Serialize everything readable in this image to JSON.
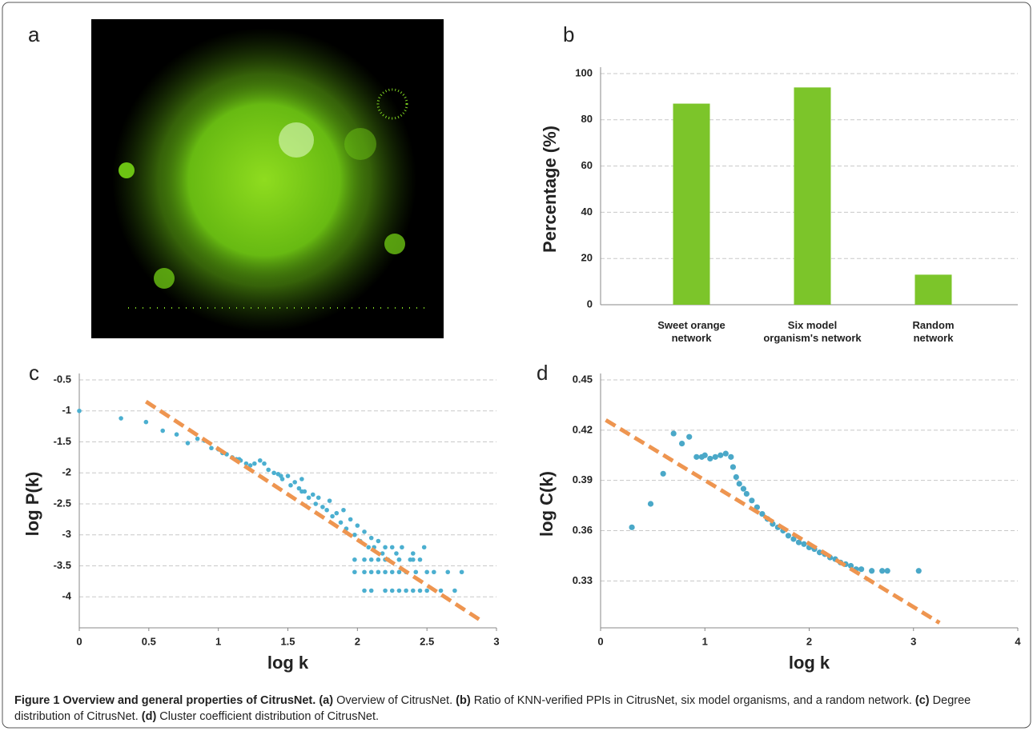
{
  "panels": [
    "a",
    "b",
    "c",
    "d"
  ],
  "chart_data": [
    {
      "type": "bar",
      "y_label": "Percentage (%)",
      "categories": [
        [
          "Sweet orange",
          "network"
        ],
        [
          "Six model",
          "organism's network"
        ],
        [
          "Random",
          "network"
        ]
      ],
      "values": [
        87,
        94,
        13
      ],
      "color": "#7cc52a",
      "ylim": [
        0,
        100
      ],
      "yticks": [
        0,
        20,
        40,
        60,
        80,
        100
      ],
      "grid": true
    },
    {
      "type": "scatter",
      "x_label": "log k",
      "y_label": "log P(k)",
      "xlim": [
        0,
        3
      ],
      "xticks": [
        0,
        0.5,
        1,
        1.5,
        2,
        2.5,
        3
      ],
      "ylim": [
        -4.5,
        -0.5
      ],
      "yticks": [
        -0.5,
        -1,
        -1.5,
        -2,
        -2.5,
        -3,
        -3.5,
        -4
      ],
      "grid": true,
      "points": {
        "color": "#4bafd0",
        "x": [
          0,
          0.3,
          0.48,
          0.6,
          0.7,
          0.78,
          0.85,
          0.9,
          0.95,
          1.0,
          1.03,
          1.06,
          1.1,
          1.13,
          1.15,
          1.16,
          1.2,
          1.23,
          1.26,
          1.3,
          1.33,
          1.36,
          1.4,
          1.43,
          1.45,
          1.46,
          1.5,
          1.52,
          1.55,
          1.58,
          1.6,
          1.6,
          1.62,
          1.65,
          1.68,
          1.7,
          1.72,
          1.75,
          1.78,
          1.8,
          1.82,
          1.85,
          1.88,
          1.9,
          1.92,
          1.95,
          1.98,
          2.0,
          2.02,
          2.05,
          2.08,
          2.1,
          2.12,
          2.15,
          2.18,
          2.2,
          2.22,
          2.25,
          2.28,
          2.3,
          2.32,
          2.35,
          2.38,
          2.4,
          2.42,
          2.45,
          2.48,
          2.5,
          2.55,
          2.6,
          2.65,
          2.7,
          2.75,
          2.05,
          2.1,
          2.2,
          2.25,
          2.3,
          2.35,
          2.4,
          2.45,
          2.5,
          1.98,
          2.05,
          2.1,
          2.15,
          2.2,
          2.25,
          2.3,
          1.98,
          2.05,
          2.1,
          2.15,
          2.2,
          2.3,
          2.4
        ],
        "y": [
          -1.0,
          -1.12,
          -1.18,
          -1.32,
          -1.38,
          -1.52,
          -1.45,
          -1.48,
          -1.6,
          -1.62,
          -1.68,
          -1.7,
          -1.75,
          -1.78,
          -1.78,
          -1.8,
          -1.85,
          -1.88,
          -1.85,
          -1.8,
          -1.85,
          -1.95,
          -2.0,
          -2.02,
          -2.05,
          -2.1,
          -2.05,
          -2.2,
          -2.15,
          -2.25,
          -2.1,
          -2.3,
          -2.3,
          -2.4,
          -2.35,
          -2.5,
          -2.4,
          -2.55,
          -2.6,
          -2.45,
          -2.7,
          -2.65,
          -2.8,
          -2.6,
          -2.9,
          -2.75,
          -3.0,
          -2.85,
          -3.1,
          -2.95,
          -3.2,
          -3.05,
          -3.2,
          -3.1,
          -3.3,
          -3.2,
          -3.4,
          -3.2,
          -3.3,
          -3.4,
          -3.2,
          -3.6,
          -3.4,
          -3.3,
          -3.6,
          -3.4,
          -3.2,
          -3.6,
          -3.6,
          -3.9,
          -3.6,
          -3.9,
          -3.6,
          -3.9,
          -3.9,
          -3.9,
          -3.9,
          -3.9,
          -3.9,
          -3.9,
          -3.9,
          -3.9,
          -3.6,
          -3.6,
          -3.6,
          -3.6,
          -3.6,
          -3.6,
          -3.6,
          -3.4,
          -3.4,
          -3.4,
          -3.4,
          -3.4,
          -3.4,
          -3.4
        ]
      },
      "trend": {
        "color": "#ee9550",
        "x": [
          0.48,
          2.9
        ],
        "y": [
          -0.85,
          -4.4
        ]
      }
    },
    {
      "type": "scatter",
      "x_label": "log k",
      "y_label": "log C(k)",
      "xlim": [
        0,
        4
      ],
      "xticks": [
        0,
        1,
        2,
        3,
        4
      ],
      "ylim": [
        0.302,
        0.45
      ],
      "yticks": [
        0.33,
        0.36,
        0.39,
        0.42,
        0.45
      ],
      "grid": true,
      "points": {
        "color": "#4aa8c8",
        "x": [
          0.3,
          0.48,
          0.6,
          0.7,
          0.78,
          0.85,
          0.92,
          0.97,
          1.0,
          1.05,
          1.1,
          1.15,
          1.2,
          1.25,
          1.27,
          1.3,
          1.33,
          1.37,
          1.4,
          1.45,
          1.5,
          1.55,
          1.6,
          1.65,
          1.7,
          1.75,
          1.8,
          1.85,
          1.9,
          1.95,
          2.0,
          2.05,
          2.1,
          2.15,
          2.2,
          2.25,
          2.3,
          2.35,
          2.4,
          2.45,
          2.5,
          2.6,
          2.7,
          2.75,
          3.05
        ],
        "y": [
          0.362,
          0.376,
          0.394,
          0.418,
          0.412,
          0.416,
          0.404,
          0.404,
          0.405,
          0.403,
          0.404,
          0.405,
          0.406,
          0.404,
          0.398,
          0.392,
          0.388,
          0.385,
          0.382,
          0.378,
          0.374,
          0.37,
          0.367,
          0.364,
          0.362,
          0.36,
          0.357,
          0.355,
          0.353,
          0.352,
          0.35,
          0.349,
          0.347,
          0.346,
          0.344,
          0.343,
          0.341,
          0.34,
          0.339,
          0.337,
          0.337,
          0.336,
          0.336,
          0.336,
          0.336
        ]
      },
      "trend": {
        "color": "#ee9550",
        "x": [
          0.05,
          3.25
        ],
        "y": [
          0.426,
          0.305
        ]
      }
    }
  ],
  "caption": {
    "runs": [
      {
        "text": "Figure 1 Overview and general properties of CitrusNet.",
        "bold": true
      },
      {
        "text": " (a)",
        "bold": true
      },
      {
        "text": " Overview of CitrusNet.",
        "bold": false
      },
      {
        "text": " (b)",
        "bold": true
      },
      {
        "text": " Ratio of KNN-verified PPIs in CitrusNet, six model organisms, and a random network.",
        "bold": false
      },
      {
        "text": " (c)",
        "bold": true
      },
      {
        "text": " Degree distribution of CitrusNet.",
        "bold": false
      },
      {
        "text": " (d)",
        "bold": true
      },
      {
        "text": " Cluster coefficient distribution of CitrusNet.",
        "bold": false
      }
    ]
  }
}
